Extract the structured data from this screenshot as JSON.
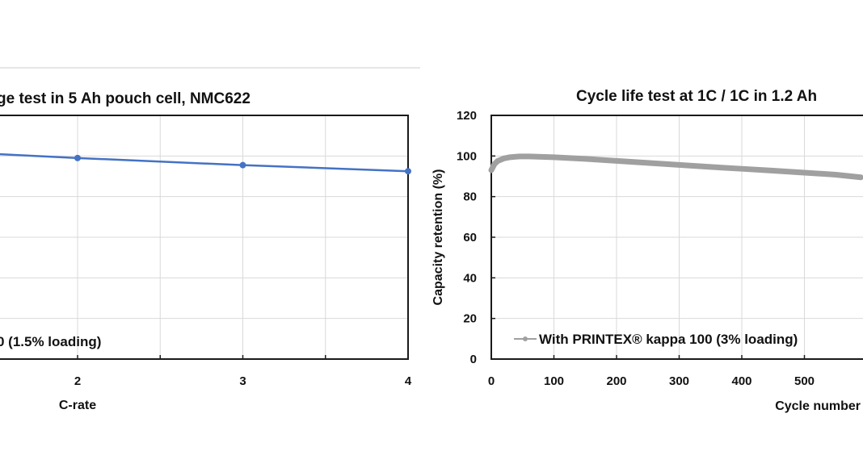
{
  "chart_data": [
    {
      "type": "line",
      "title": "ge test in 5 Ah pouch cell, NMC622",
      "xlabel": "C-rate",
      "ylabel": "",
      "x_tick_labels": [
        "2",
        "3",
        "4"
      ],
      "xlim": [
        1.5,
        4
      ],
      "ylim": [
        0,
        120
      ],
      "grid": true,
      "legend": {
        "placement": "bottom-left",
        "entries": [
          "0 (1.5% loading)"
        ]
      },
      "series": [
        {
          "name": "0 (1.5% loading)",
          "color": "#4472c4",
          "x": [
            1.5,
            2,
            3,
            4
          ],
          "y": [
            101,
            99,
            95.5,
            92.5
          ]
        }
      ]
    },
    {
      "type": "line",
      "title": "Cycle life test at 1C / 1C in 1.2 Ah",
      "xlabel": "Cycle number",
      "ylabel": "Capacity  retention  (%)",
      "x_tick_labels": [
        "0",
        "100",
        "200",
        "300",
        "400",
        "500"
      ],
      "y_tick_labels": [
        "0",
        "20",
        "40",
        "60",
        "80",
        "100",
        "120"
      ],
      "xlim": [
        0,
        590
      ],
      "ylim": [
        0,
        120
      ],
      "grid": true,
      "legend": {
        "placement": "bottom-left",
        "entries": [
          "With PRINTEX® kappa 100 (3% loading)"
        ]
      },
      "series": [
        {
          "name": "With PRINTEX® kappa 100 (3% loading)",
          "color": "#a0a0a0",
          "x": [
            0,
            5,
            10,
            20,
            30,
            45,
            60,
            80,
            100,
            150,
            200,
            250,
            300,
            350,
            400,
            450,
            500,
            550,
            590
          ],
          "y": [
            93,
            96,
            97.5,
            98.8,
            99.4,
            99.8,
            99.8,
            99.6,
            99.4,
            98.6,
            97.6,
            96.6,
            95.6,
            94.6,
            93.7,
            92.8,
            91.8,
            90.8,
            89.5
          ]
        }
      ]
    }
  ]
}
